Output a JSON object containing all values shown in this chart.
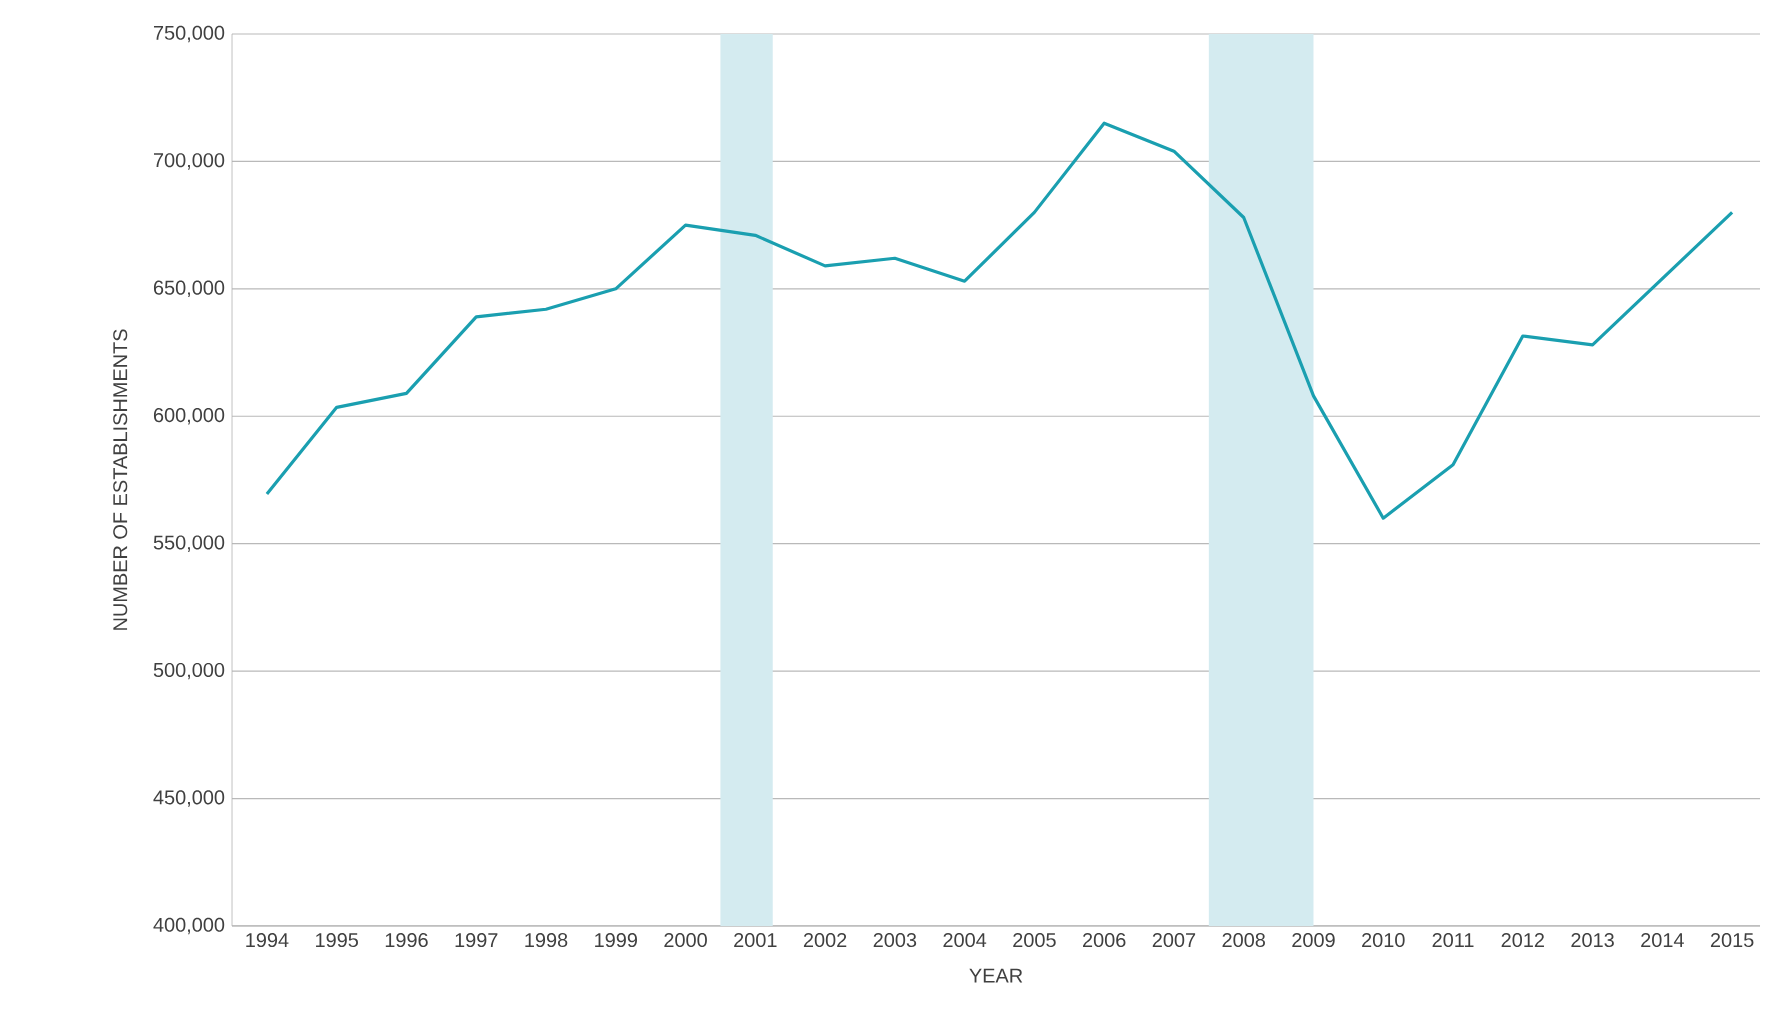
{
  "chart_data": {
    "type": "line",
    "xlabel": "YEAR",
    "ylabel": "NUMBER OF ESTABLISHMENTS",
    "x": [
      1994,
      1995,
      1996,
      1997,
      1998,
      1999,
      2000,
      2001,
      2002,
      2003,
      2004,
      2005,
      2006,
      2007,
      2008,
      2009,
      2010,
      2011,
      2012,
      2013,
      2014,
      2015
    ],
    "series": [
      {
        "color": "#1a9fb0",
        "values": [
          569500,
          603500,
          609000,
          639000,
          642000,
          650000,
          675000,
          671000,
          659000,
          662000,
          653000,
          680000,
          715000,
          704000,
          678000,
          608000,
          560000,
          581000,
          631500,
          628000,
          654000,
          680000
        ]
      }
    ],
    "xlim": [
      1993.5,
      2015.4
    ],
    "xticks": [
      1994,
      1995,
      1996,
      1997,
      1998,
      1999,
      2000,
      2001,
      2002,
      2003,
      2004,
      2005,
      2006,
      2007,
      2008,
      2009,
      2010,
      2011,
      2012,
      2013,
      2014,
      2015
    ],
    "ylim": [
      400000,
      750000
    ],
    "yticks": [
      {
        "value": 400000,
        "label": "400,000"
      },
      {
        "value": 450000,
        "label": "450,000"
      },
      {
        "value": 500000,
        "label": "500,000"
      },
      {
        "value": 550000,
        "label": "550,000"
      },
      {
        "value": 600000,
        "label": "600,000"
      },
      {
        "value": 650000,
        "label": "650,000"
      },
      {
        "value": 700000,
        "label": "700,000"
      },
      {
        "value": 750000,
        "label": "750,000"
      }
    ],
    "bands": [
      {
        "axis": "x",
        "from": 2000.5,
        "to": 2001.25,
        "color": "#d4ebf0"
      },
      {
        "axis": "x",
        "from": 2007.5,
        "to": 2009,
        "color": "#d4ebf0"
      }
    ],
    "grid": "y",
    "marker": "none",
    "line_style": "solid"
  }
}
